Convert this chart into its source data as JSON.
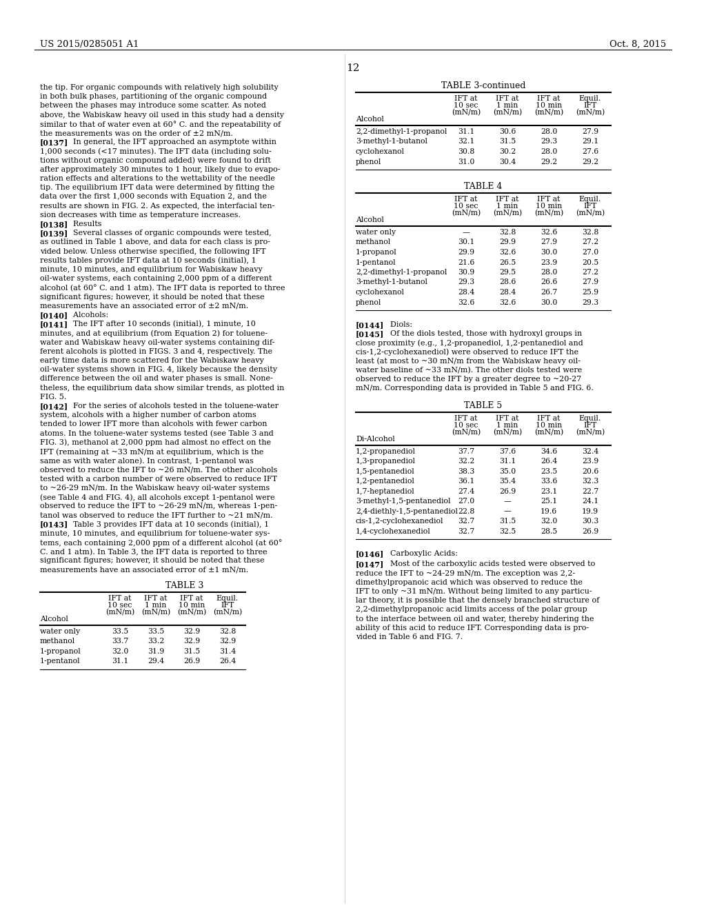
{
  "page_header_left": "US 2015/0285051 A1",
  "page_header_right": "Oct. 8, 2015",
  "page_number": "12",
  "bg_color": "#ffffff",
  "left_col_lines": [
    [
      "",
      "the tip. For organic compounds with relatively high solubility"
    ],
    [
      "",
      "in both bulk phases, partitioning of the organic compound"
    ],
    [
      "",
      "between the phases may introduce some scatter. As noted"
    ],
    [
      "",
      "above, the Wabiskaw heavy oil used in this study had a density"
    ],
    [
      "",
      "similar to that of water even at 60° C. and the repeatability of"
    ],
    [
      "",
      "the measurements was on the order of ±2 mN/m."
    ],
    [
      "[0137]",
      "    In general, the IFT approached an asymptote within"
    ],
    [
      "",
      "1,000 seconds (<17 minutes). The IFT data (including solu-"
    ],
    [
      "",
      "tions without organic compound added) were found to drift"
    ],
    [
      "",
      "after approximately 30 minutes to 1 hour, likely due to evapo-"
    ],
    [
      "",
      "ration effects and alterations to the wettability of the needle"
    ],
    [
      "",
      "tip. The equilibrium IFT data were determined by fitting the"
    ],
    [
      "",
      "data over the first 1,000 seconds with Equation 2, and the"
    ],
    [
      "",
      "results are shown in FIG. 2. As expected, the interfacial ten-"
    ],
    [
      "",
      "sion decreases with time as temperature increases."
    ],
    [
      "[0138]",
      "    Results"
    ],
    [
      "[0139]",
      "    Several classes of organic compounds were tested,"
    ],
    [
      "",
      "as outlined in Table 1 above, and data for each class is pro-"
    ],
    [
      "",
      "vided below. Unless otherwise specified, the following IFT"
    ],
    [
      "",
      "results tables provide IFT data at 10 seconds (initial), 1"
    ],
    [
      "",
      "minute, 10 minutes, and equilibrium for Wabiskaw heavy"
    ],
    [
      "",
      "oil-water systems, each containing 2,000 ppm of a different"
    ],
    [
      "",
      "alcohol (at 60° C. and 1 atm). The IFT data is reported to three"
    ],
    [
      "",
      "significant figures; however, it should be noted that these"
    ],
    [
      "",
      "measurements have an associated error of ±2 mN/m."
    ],
    [
      "[0140]",
      "    Alcohols:"
    ],
    [
      "[0141]",
      "    The IFT after 10 seconds (initial), 1 minute, 10"
    ],
    [
      "",
      "minutes, and at equilibrium (from Equation 2) for toluene-"
    ],
    [
      "",
      "water and Wabiskaw heavy oil-water systems containing dif-"
    ],
    [
      "",
      "ferent alcohols is plotted in FIGS. 3 and 4, respectively. The"
    ],
    [
      "",
      "early time data is more scattered for the Wabiskaw heavy"
    ],
    [
      "",
      "oil-water systems shown in FIG. 4, likely because the density"
    ],
    [
      "",
      "difference between the oil and water phases is small. None-"
    ],
    [
      "",
      "theless, the equilibrium data show similar trends, as plotted in"
    ],
    [
      "",
      "FIG. 5."
    ],
    [
      "[0142]",
      "    For the series of alcohols tested in the toluene-water"
    ],
    [
      "",
      "system, alcohols with a higher number of carbon atoms"
    ],
    [
      "",
      "tended to lower IFT more than alcohols with fewer carbon"
    ],
    [
      "",
      "atoms. In the toluene-water systems tested (see Table 3 and"
    ],
    [
      "",
      "FIG. 3), methanol at 2,000 ppm had almost no effect on the"
    ],
    [
      "",
      "IFT (remaining at ~33 mN/m at equilibrium, which is the"
    ],
    [
      "",
      "same as with water alone). In contrast, 1-pentanol was"
    ],
    [
      "",
      "observed to reduce the IFT to ~26 mN/m. The other alcohols"
    ],
    [
      "",
      "tested with a carbon number of were observed to reduce IFT"
    ],
    [
      "",
      "to ~26-29 mN/m. In the Wabiskaw heavy oil-water systems"
    ],
    [
      "",
      "(see Table 4 and FIG. 4), all alcohols except 1-pentanol were"
    ],
    [
      "",
      "observed to reduce the IFT to ~26-29 mN/m, whereas 1-pen-"
    ],
    [
      "",
      "tanol was observed to reduce the IFT further to ~21 mN/m."
    ],
    [
      "[0143]",
      "    Table 3 provides IFT data at 10 seconds (initial), 1"
    ],
    [
      "",
      "minute, 10 minutes, and equilibrium for toluene-water sys-"
    ],
    [
      "",
      "tems, each containing 2,000 ppm of a different alcohol (at 60°"
    ],
    [
      "",
      "C. and 1 atm). In Table 3, the IFT data is reported to three"
    ],
    [
      "",
      "significant figures; however, it should be noted that these"
    ],
    [
      "",
      "measurements have an associated error of ±1 mN/m."
    ]
  ],
  "table3cont_title": "TABLE 3-continued",
  "table3cont_col0_header": "Alcohol",
  "table3cont_data": [
    [
      "2,2-dimethyl-1-propanol",
      "31.1",
      "30.6",
      "28.0",
      "27.9"
    ],
    [
      "3-methyl-1-butanol",
      "32.1",
      "31.5",
      "29.3",
      "29.1"
    ],
    [
      "cyclohexanol",
      "30.8",
      "30.2",
      "28.0",
      "27.6"
    ],
    [
      "phenol",
      "31.0",
      "30.4",
      "29.2",
      "29.2"
    ]
  ],
  "table4_title": "TABLE 4",
  "table4_col0_header": "Alcohol",
  "table4_data": [
    [
      "water only",
      "—",
      "32.8",
      "32.6",
      "32.8"
    ],
    [
      "methanol",
      "30.1",
      "29.9",
      "27.9",
      "27.2"
    ],
    [
      "1-propanol",
      "29.9",
      "32.6",
      "30.0",
      "27.0"
    ],
    [
      "1-pentanol",
      "21.6",
      "26.5",
      "23.9",
      "20.5"
    ],
    [
      "2,2-dimethyl-1-propanol",
      "30.9",
      "29.5",
      "28.0",
      "27.2"
    ],
    [
      "3-methyl-1-butanol",
      "29.3",
      "28.6",
      "26.6",
      "27.9"
    ],
    [
      "cyclohexanol",
      "28.4",
      "28.4",
      "26.7",
      "25.9"
    ],
    [
      "phenol",
      "32.6",
      "32.6",
      "30.0",
      "29.3"
    ]
  ],
  "para0144_tag": "[0144]",
  "para0144_text": "    Diols:",
  "para0145_tag": "[0145]",
  "para0145_first": "    Of the diols tested, those with hydroxyl groups in",
  "para0145_rest": [
    "close proximity (e.g., 1,2-propanediol, 1,2-pentanediol and",
    "cis-1,2-cyclohexanediol) were observed to reduce IFT the",
    "least (at most to ~30 mN/m from the Wabiskaw heavy oil-",
    "water baseline of ~33 mN/m). The other diols tested were",
    "observed to reduce the IFT by a greater degree to ~20-27",
    "mN/m. Corresponding data is provided in Table 5 and FIG. 6."
  ],
  "table5_title": "TABLE 5",
  "table5_col0_header": "Di-Alcohol",
  "table5_data": [
    [
      "1,2-propanediol",
      "37.7",
      "37.6",
      "34.6",
      "32.4"
    ],
    [
      "1,3-propanediol",
      "32.2",
      "31.1",
      "26.4",
      "23.9"
    ],
    [
      "1,5-pentanediol",
      "38.3",
      "35.0",
      "23.5",
      "20.6"
    ],
    [
      "1,2-pentanediol",
      "36.1",
      "35.4",
      "33.6",
      "32.3"
    ],
    [
      "1,7-heptanediol",
      "27.4",
      "26.9",
      "23.1",
      "22.7"
    ],
    [
      "3-methyl-1,5-pentanediol",
      "27.0",
      "—",
      "25.1",
      "24.1"
    ],
    [
      "2,4-diethly-1,5-pentanediol",
      "22.8",
      "—",
      "19.6",
      "19.9"
    ],
    [
      "cis-1,2-cyclohexanediol",
      "32.7",
      "31.5",
      "32.0",
      "30.3"
    ],
    [
      "1,4-cyclohexanediol",
      "32.7",
      "32.5",
      "28.5",
      "26.9"
    ]
  ],
  "para0146_tag": "[0146]",
  "para0146_text": "    Carboxylic Acids:",
  "para0147_tag": "[0147]",
  "para0147_first": "    Most of the carboxylic acids tested were observed to",
  "para0147_rest": [
    "reduce the IFT to ~24-29 mN/m. The exception was 2,2-",
    "dimethylpropanoic acid which was observed to reduce the",
    "IFT to only ~31 mN/m. Without being limited to any particu-",
    "lar theory, it is possible that the densely branched structure of",
    "2,2-dimethylpropanoic acid limits access of the polar group",
    "to the interface between oil and water, thereby hindering the",
    "ability of this acid to reduce IFT. Corresponding data is pro-",
    "vided in Table 6 and FIG. 7."
  ],
  "table3_title": "TABLE 3",
  "table3_col0_header": "Alcohol",
  "table3_data": [
    [
      "water only",
      "33.5",
      "33.5",
      "32.9",
      "32.8"
    ],
    [
      "methanol",
      "33.7",
      "33.2",
      "32.9",
      "32.9"
    ],
    [
      "1-propanol",
      "32.0",
      "31.9",
      "31.5",
      "31.4"
    ],
    [
      "1-pentanol",
      "31.1",
      "29.4",
      "26.9",
      "26.4"
    ]
  ]
}
